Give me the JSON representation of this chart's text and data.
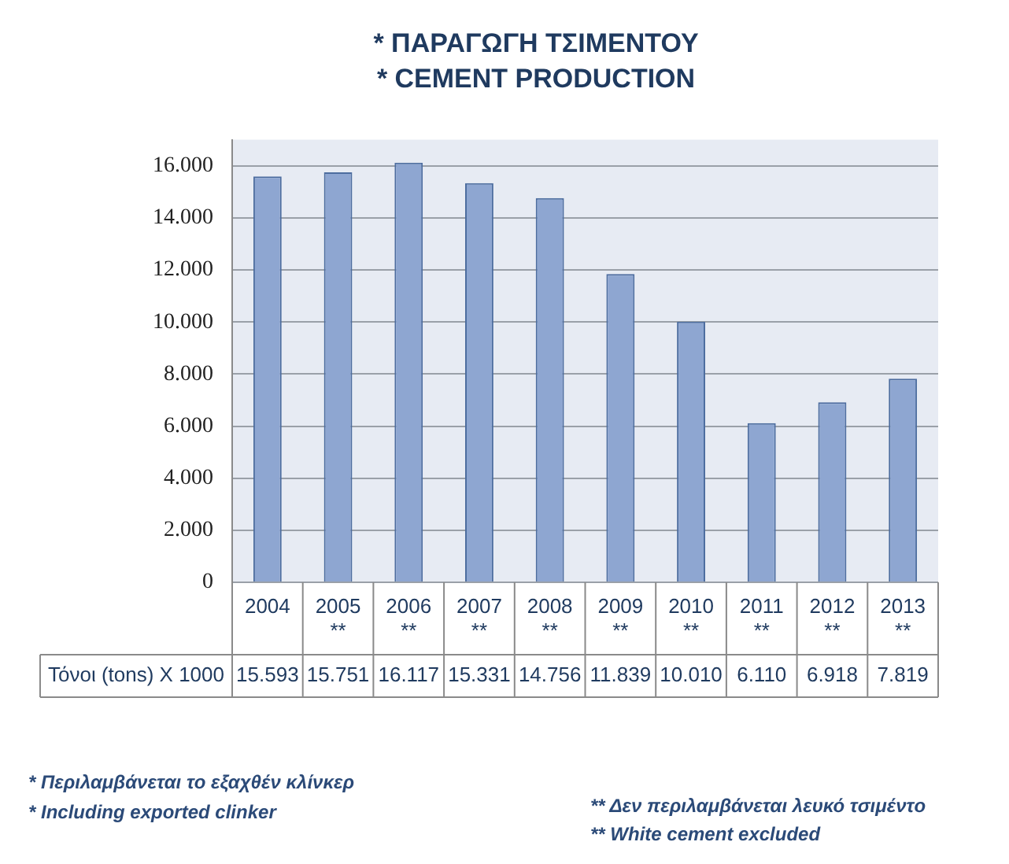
{
  "chart_data": {
    "type": "bar",
    "title": "* ΠΑΡΑΓΩΓΗ ΤΣΙΜΕΝΤΟΥ",
    "subtitle": "* CEMENT PRODUCTION",
    "categories": [
      "2004",
      "2005 **",
      "2006 **",
      "2007 **",
      "2008 **",
      "2009 **",
      "2010 **",
      "2011 **",
      "2012 **",
      "2013 **"
    ],
    "values": [
      15593,
      15751,
      16117,
      15331,
      14756,
      11839,
      10010,
      6110,
      6918,
      7819
    ],
    "value_labels": [
      "15.593",
      "15.751",
      "16.117",
      "15.331",
      "14.756",
      "11.839",
      "10.010",
      "6.110",
      "6.918",
      "7.819"
    ],
    "color": "#8ea6d1",
    "ylim": [
      0,
      17000
    ],
    "yticks": [
      {
        "value": 0,
        "label": "0"
      },
      {
        "value": 2000,
        "label": "2.000"
      },
      {
        "value": 4000,
        "label": "4.000"
      },
      {
        "value": 6000,
        "label": "6.000"
      },
      {
        "value": 8000,
        "label": "8.000"
      },
      {
        "value": 10000,
        "label": "10.000"
      },
      {
        "value": 12000,
        "label": "12.000"
      },
      {
        "value": 14000,
        "label": "14.000"
      },
      {
        "value": 16000,
        "label": "16.000"
      }
    ],
    "grid": "y",
    "annotations": [
      "Τόνοι (tons) X 1000",
      "* Περιλαμβάνεται το εξαχθέν κλίνκερ",
      "* Including exported clinker",
      "** Δεν περιλαμβάνεται λευκό τσιμέντο",
      "** White cement excluded"
    ]
  }
}
